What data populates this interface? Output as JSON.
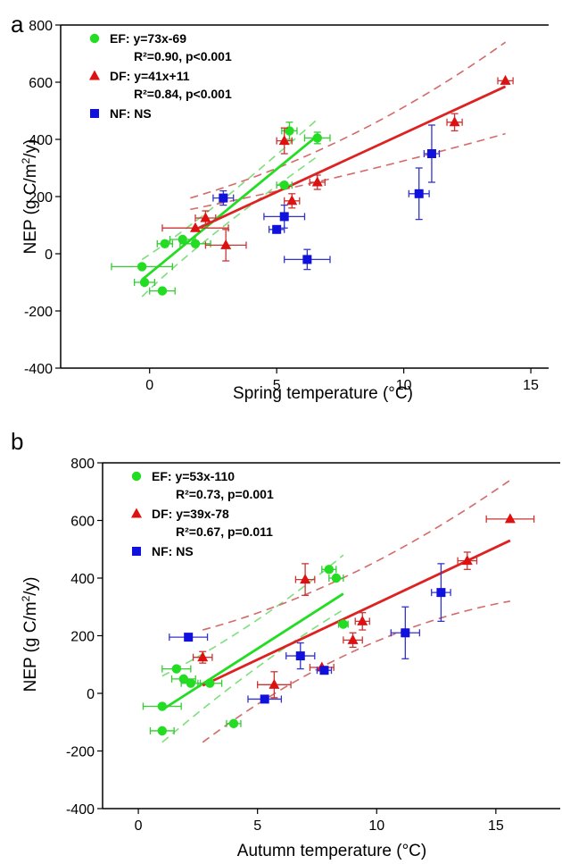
{
  "panel_letters": [
    "a",
    "b"
  ],
  "chart_data": [
    {
      "type": "scatter",
      "panel": "a",
      "xlabel": "Spring temperature (°C)",
      "ylabel": "NEP (g C/m2/y)",
      "xlim": [
        -3.5,
        15.7
      ],
      "ylim": [
        -400,
        800
      ],
      "xticks": [
        "0",
        "5",
        "10",
        "15"
      ],
      "yticks": [
        "-400",
        "-200",
        "0",
        "200",
        "400",
        "600",
        "800"
      ],
      "legend_position": "top-left",
      "legend": [
        {
          "label": "EF:",
          "equation": "y=73x-69",
          "stats": "R²=0.90, p<0.001",
          "color": "#22dd22",
          "marker": "circle"
        },
        {
          "label": "DF:",
          "equation": "y=41x+11",
          "stats": "R²=0.84, p<0.001",
          "color": "#dd1111",
          "marker": "triangle"
        },
        {
          "label": "NF:",
          "equation": "NS",
          "stats": "",
          "color": "#1111dd",
          "marker": "square"
        }
      ],
      "series": [
        {
          "name": "EF",
          "color": "#22dd22",
          "marker": "circle",
          "points": [
            {
              "x": -0.3,
              "y": -45,
              "xerr": 1.2,
              "yerr": 0
            },
            {
              "x": -0.2,
              "y": -100,
              "xerr": 0.4,
              "yerr": 0
            },
            {
              "x": 0.5,
              "y": -130,
              "xerr": 0.5,
              "yerr": 0
            },
            {
              "x": 0.6,
              "y": 35,
              "xerr": 0.3,
              "yerr": 0
            },
            {
              "x": 1.3,
              "y": 50,
              "xerr": 0.5,
              "yerr": 0
            },
            {
              "x": 1.8,
              "y": 35,
              "xerr": 0.6,
              "yerr": 0
            },
            {
              "x": 5.3,
              "y": 240,
              "xerr": 0.3,
              "yerr": 0
            },
            {
              "x": 5.5,
              "y": 430,
              "xerr": 0.3,
              "yerr": 30
            },
            {
              "x": 6.6,
              "y": 405,
              "xerr": 0.5,
              "yerr": 20
            }
          ],
          "fit": {
            "slope": 73,
            "intercept": -69,
            "x_range": [
              -0.3,
              6.6
            ]
          },
          "ci": {
            "lower": [
              [
                -0.3,
                -150
              ],
              [
                2,
                50
              ],
              [
                6.6,
                340
              ]
            ],
            "upper": [
              [
                -0.3,
                -20
              ],
              [
                2,
                110
              ],
              [
                6.6,
                470
              ]
            ]
          }
        },
        {
          "name": "DF",
          "color": "#dd1111",
          "marker": "triangle",
          "points": [
            {
              "x": 1.8,
              "y": 90,
              "xerr": 1.3,
              "yerr": 0
            },
            {
              "x": 2.2,
              "y": 125,
              "xerr": 0.4,
              "yerr": 25
            },
            {
              "x": 3.0,
              "y": 30,
              "xerr": 0.8,
              "yerr": 55
            },
            {
              "x": 5.3,
              "y": 395,
              "xerr": 0.3,
              "yerr": 45
            },
            {
              "x": 5.6,
              "y": 185,
              "xerr": 0.3,
              "yerr": 25
            },
            {
              "x": 6.6,
              "y": 250,
              "xerr": 0.3,
              "yerr": 25
            },
            {
              "x": 12.0,
              "y": 460,
              "xerr": 0.3,
              "yerr": 30
            },
            {
              "x": 14.0,
              "y": 605,
              "xerr": 0.3,
              "yerr": 0
            }
          ],
          "fit": {
            "slope": 41,
            "intercept": 11,
            "x_range": [
              1.8,
              14.0
            ]
          },
          "ci": {
            "lower": [
              [
                1.6,
                155
              ],
              [
                8,
                270
              ],
              [
                14,
                420
              ]
            ],
            "upper": [
              [
                1.6,
                195
              ],
              [
                8,
                360
              ],
              [
                14,
                740
              ]
            ]
          }
        },
        {
          "name": "NF",
          "color": "#1111dd",
          "marker": "square",
          "points": [
            {
              "x": 2.9,
              "y": 195,
              "xerr": 0.4,
              "yerr": 25
            },
            {
              "x": 5.0,
              "y": 85,
              "xerr": 0.3,
              "yerr": 0
            },
            {
              "x": 5.3,
              "y": 130,
              "xerr": 0.8,
              "yerr": 40
            },
            {
              "x": 6.2,
              "y": -20,
              "xerr": 0.9,
              "yerr": 35
            },
            {
              "x": 10.6,
              "y": 210,
              "xerr": 0.4,
              "yerr": 90
            },
            {
              "x": 11.1,
              "y": 350,
              "xerr": 0.3,
              "yerr": 100
            }
          ]
        }
      ]
    },
    {
      "type": "scatter",
      "panel": "b",
      "xlabel": "Autumn temperature (°C)",
      "ylabel": "NEP (g C/m2/y)",
      "xlim": [
        -1.5,
        17.7
      ],
      "ylim": [
        -400,
        800
      ],
      "xticks": [
        "0",
        "5",
        "10",
        "15"
      ],
      "yticks": [
        "-400",
        "-200",
        "0",
        "200",
        "400",
        "600",
        "800"
      ],
      "legend_position": "top-left",
      "legend": [
        {
          "label": "EF:",
          "equation": "y=53x-110",
          "stats": "R²=0.73, p=0.001",
          "color": "#22dd22",
          "marker": "circle"
        },
        {
          "label": "DF:",
          "equation": "y=39x-78",
          "stats": "R²=0.67, p=0.011",
          "color": "#dd1111",
          "marker": "triangle"
        },
        {
          "label": "NF:",
          "equation": "NS",
          "stats": "",
          "color": "#1111dd",
          "marker": "square"
        }
      ],
      "series": [
        {
          "name": "EF",
          "color": "#22dd22",
          "marker": "circle",
          "points": [
            {
              "x": 1.0,
              "y": -130,
              "xerr": 0.5,
              "yerr": 0
            },
            {
              "x": 1.0,
              "y": -45,
              "xerr": 0.8,
              "yerr": 0
            },
            {
              "x": 1.6,
              "y": 85,
              "xerr": 0.6,
              "yerr": 0
            },
            {
              "x": 1.9,
              "y": 50,
              "xerr": 0.5,
              "yerr": 0
            },
            {
              "x": 2.2,
              "y": 35,
              "xerr": 0.4,
              "yerr": 0
            },
            {
              "x": 3.0,
              "y": 35,
              "xerr": 0.5,
              "yerr": 0
            },
            {
              "x": 4.0,
              "y": -105,
              "xerr": 0.3,
              "yerr": 0
            },
            {
              "x": 8.0,
              "y": 430,
              "xerr": 0.3,
              "yerr": 0
            },
            {
              "x": 8.3,
              "y": 400,
              "xerr": 0.3,
              "yerr": 0
            },
            {
              "x": 8.6,
              "y": 240,
              "xerr": 0.2,
              "yerr": 0
            }
          ],
          "fit": {
            "slope": 53,
            "intercept": -110,
            "x_range": [
              1.0,
              8.6
            ]
          },
          "ci": {
            "lower": [
              [
                1.0,
                -170
              ],
              [
                5,
                110
              ],
              [
                8.6,
                290
              ]
            ],
            "upper": [
              [
                1.0,
                60
              ],
              [
                5,
                230
              ],
              [
                8.6,
                480
              ]
            ]
          }
        },
        {
          "name": "DF",
          "color": "#dd1111",
          "marker": "triangle",
          "points": [
            {
              "x": 2.7,
              "y": 125,
              "xerr": 0.4,
              "yerr": 20
            },
            {
              "x": 5.7,
              "y": 30,
              "xerr": 0.7,
              "yerr": 45
            },
            {
              "x": 7.0,
              "y": 395,
              "xerr": 0.4,
              "yerr": 55
            },
            {
              "x": 7.7,
              "y": 90,
              "xerr": 0.5,
              "yerr": 0
            },
            {
              "x": 9.0,
              "y": 185,
              "xerr": 0.4,
              "yerr": 25
            },
            {
              "x": 9.4,
              "y": 250,
              "xerr": 0.3,
              "yerr": 30
            },
            {
              "x": 13.8,
              "y": 460,
              "xerr": 0.4,
              "yerr": 30
            },
            {
              "x": 15.6,
              "y": 605,
              "xerr": 1.0,
              "yerr": 0
            }
          ],
          "fit": {
            "slope": 39,
            "intercept": -78,
            "x_range": [
              2.7,
              15.6
            ]
          },
          "ci": {
            "lower": [
              [
                2.7,
                -170
              ],
              [
                9,
                220
              ],
              [
                15.6,
                320
              ]
            ],
            "upper": [
              [
                2.7,
                220
              ],
              [
                9,
                360
              ],
              [
                15.6,
                740
              ]
            ]
          }
        },
        {
          "name": "NF",
          "color": "#1111dd",
          "marker": "square",
          "points": [
            {
              "x": 2.1,
              "y": 195,
              "xerr": 0.8,
              "yerr": 0
            },
            {
              "x": 5.3,
              "y": -20,
              "xerr": 0.7,
              "yerr": 0
            },
            {
              "x": 6.8,
              "y": 130,
              "xerr": 0.6,
              "yerr": 45
            },
            {
              "x": 7.8,
              "y": 80,
              "xerr": 0.3,
              "yerr": 0
            },
            {
              "x": 11.2,
              "y": 210,
              "xerr": 0.6,
              "yerr": 90
            },
            {
              "x": 12.7,
              "y": 350,
              "xerr": 0.4,
              "yerr": 100
            }
          ]
        }
      ]
    }
  ]
}
